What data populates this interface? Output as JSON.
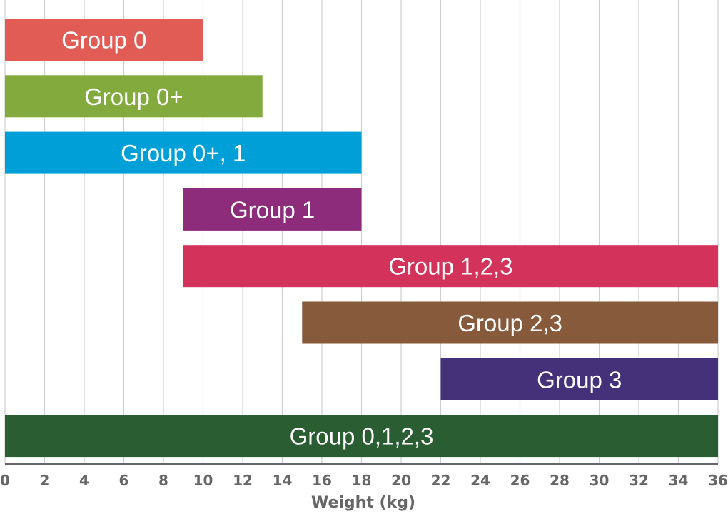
{
  "chart_data": {
    "type": "bar",
    "orientation": "horizontal-range",
    "title": "",
    "xlabel": "Weight (kg)",
    "ylabel": "",
    "xlim": [
      0,
      36
    ],
    "x_ticks": [
      0,
      2,
      4,
      6,
      8,
      10,
      12,
      14,
      16,
      18,
      20,
      22,
      24,
      26,
      28,
      30,
      32,
      34,
      36
    ],
    "grid": true,
    "legend": "none",
    "bars": [
      {
        "label": "Group 0",
        "start": 0,
        "end": 10,
        "color": "#e25c56"
      },
      {
        "label": "Group 0+",
        "start": 0,
        "end": 13,
        "color": "#82aa3c"
      },
      {
        "label": "Group 0+, 1",
        "start": 0,
        "end": 18,
        "color": "#009fd8"
      },
      {
        "label": "Group 1",
        "start": 9,
        "end": 18,
        "color": "#8e2c7c"
      },
      {
        "label": "Group 1,2,3",
        "start": 9,
        "end": 36,
        "color": "#d3325a"
      },
      {
        "label": "Group 2,3",
        "start": 15,
        "end": 36,
        "color": "#875a3c"
      },
      {
        "label": "Group 3",
        "start": 22,
        "end": 36,
        "color": "#45307a"
      },
      {
        "label": "Group 0,1,2,3",
        "start": 0,
        "end": 36,
        "color": "#2a5e32"
      }
    ]
  }
}
